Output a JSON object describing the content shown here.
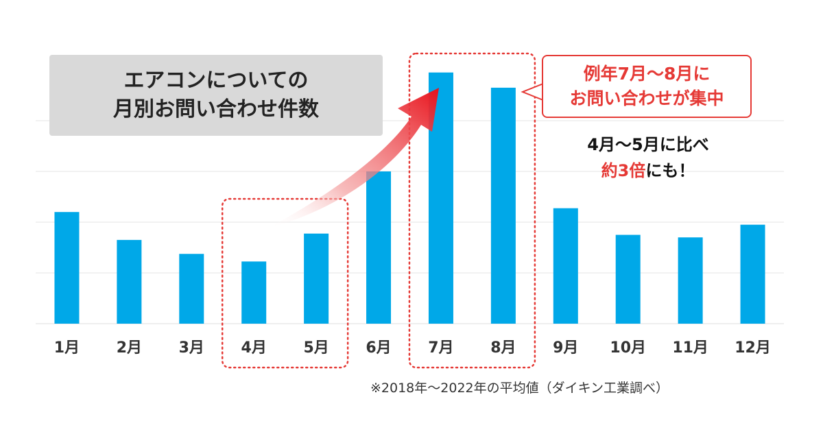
{
  "headline": {
    "line1": "エアコンについての",
    "line2": "月別お問い合わせ件数"
  },
  "callout": {
    "line1": "例年7月～8月に",
    "line2": "お問い合わせが集中"
  },
  "comparison": {
    "line1": "4月～5月に比べ",
    "emphasis": "約3倍",
    "suffix": "にも！"
  },
  "footnote": "※2018年～2022年の平均値（ダイキン工業調べ）",
  "colors": {
    "bar": "#00a8e8",
    "accent": "#e53935",
    "title_box": "#d9d9d9",
    "grid": "#e6e6e6"
  },
  "chart_data": {
    "type": "bar",
    "categories": [
      "1月",
      "2月",
      "3月",
      "4月",
      "5月",
      "6月",
      "7月",
      "8月",
      "9月",
      "10月",
      "11月",
      "12月"
    ],
    "values": [
      44,
      33,
      27.5,
      24.5,
      35.5,
      60,
      99,
      93,
      45.5,
      35,
      34,
      39
    ],
    "ylim": [
      0,
      100
    ],
    "grid": true,
    "highlight_groups": [
      {
        "categories": [
          "4月",
          "5月"
        ],
        "style": "dotted-red-box"
      },
      {
        "categories": [
          "7月",
          "8月"
        ],
        "style": "dotted-red-box"
      }
    ]
  }
}
